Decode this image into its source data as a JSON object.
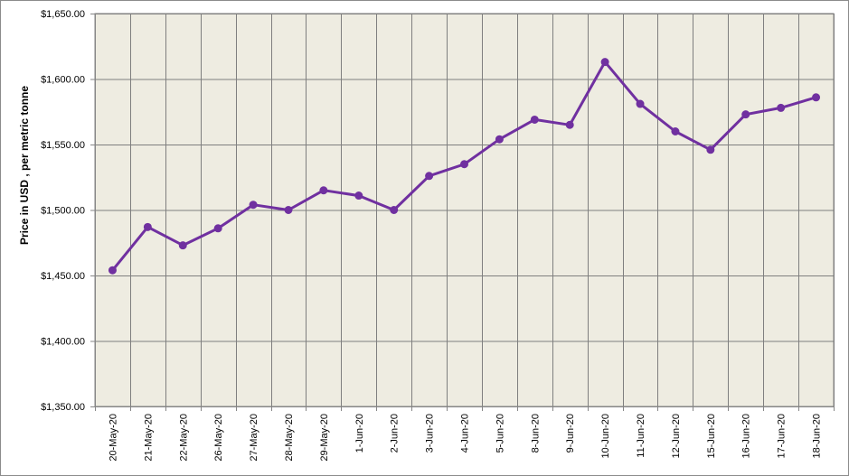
{
  "chart_data": {
    "type": "line",
    "title": "",
    "xlabel": "",
    "ylabel": "Price in USD , per metric tonne",
    "ylim": [
      1350,
      1650
    ],
    "y_ticks": [
      "$1,350.00",
      "$1,400.00",
      "$1,450.00",
      "$1,500.00",
      "$1,550.00",
      "$1,600.00",
      "$1,650.00"
    ],
    "y_tick_values": [
      1350,
      1400,
      1450,
      1500,
      1550,
      1600,
      1650
    ],
    "grid": true,
    "legend": "none",
    "categories": [
      "20-May-20",
      "21-May-20",
      "22-May-20",
      "26-May-20",
      "27-May-20",
      "28-May-20",
      "29-May-20",
      "1-Jun-20",
      "2-Jun-20",
      "3-Jun-20",
      "4-Jun-20",
      "5-Jun-20",
      "8-Jun-20",
      "9-Jun-20",
      "10-Jun-20",
      "11-Jun-20",
      "12-Jun-20",
      "15-Jun-20",
      "16-Jun-20",
      "17-Jun-20",
      "18-Jun-20"
    ],
    "series": [
      {
        "values": [
          1454,
          1487,
          1473,
          1486,
          1504,
          1500,
          1515,
          1511,
          1500,
          1526,
          1535,
          1554,
          1569,
          1565,
          1613,
          1581,
          1560,
          1546,
          1573,
          1578,
          1586
        ],
        "color": "#7030a0"
      }
    ],
    "plot_bg": "#eeece1",
    "grid_color": "#7f7f7f"
  }
}
